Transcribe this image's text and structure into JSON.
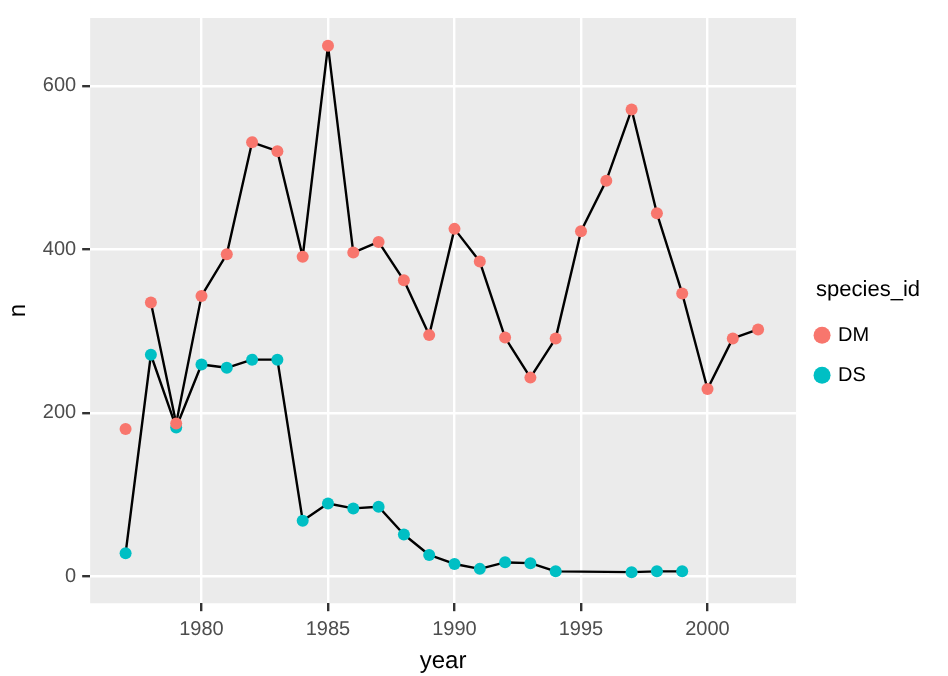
{
  "chart_data": {
    "type": "scatter",
    "xlabel": "year",
    "ylabel": "n",
    "legend_title": "species_id",
    "legend": "right",
    "grid": true,
    "marker": "circle",
    "xlim": [
      1975.6,
      2003.5
    ],
    "xticks": [
      1980,
      1985,
      1990,
      1995,
      2000
    ],
    "ylim": [
      -33,
      683
    ],
    "yticks": [
      0,
      200,
      400,
      600
    ],
    "series": [
      {
        "name": "DM",
        "color": "#f8766d",
        "x": [
          1977,
          1978,
          1979,
          1980,
          1981,
          1982,
          1983,
          1984,
          1985,
          1986,
          1987,
          1988,
          1989,
          1990,
          1991,
          1992,
          1993,
          1994,
          1995,
          1996,
          1997,
          1998,
          1999,
          2000,
          2001,
          2002
        ],
        "values": [
          180,
          335,
          187,
          343,
          394,
          531,
          520,
          391,
          649,
          396,
          409,
          362,
          295,
          425,
          385,
          292,
          243,
          291,
          422,
          484,
          571,
          444,
          346,
          229,
          291,
          302
        ]
      },
      {
        "name": "DS",
        "color": "#00bfc4",
        "x": [
          1977,
          1978,
          1979,
          1980,
          1981,
          1982,
          1983,
          1984,
          1985,
          1986,
          1987,
          1988,
          1989,
          1990,
          1991,
          1992,
          1993,
          1994,
          1997,
          1998,
          1999
        ],
        "values": [
          28,
          271,
          182,
          259,
          255,
          265,
          265,
          68,
          89,
          83,
          85,
          51,
          26,
          15,
          9,
          17,
          16,
          6,
          5,
          6,
          6
        ]
      },
      {
        "type": "line",
        "marker": "none",
        "color": "#000000",
        "x": [
          1978,
          1979,
          1980,
          1981,
          1982,
          1983,
          1984,
          1985,
          1986,
          1987,
          1988,
          1989,
          1990,
          1991,
          1992,
          1993,
          1994,
          1995,
          1996,
          1997,
          1998,
          1999,
          2000,
          2001,
          2002
        ],
        "values": [
          335,
          187,
          343,
          394,
          531,
          520,
          391,
          649,
          396,
          409,
          362,
          295,
          425,
          385,
          292,
          243,
          291,
          422,
          484,
          571,
          444,
          346,
          229,
          291,
          302
        ]
      },
      {
        "type": "line",
        "marker": "none",
        "color": "#000000",
        "x": [
          1977,
          1978,
          1979,
          1980,
          1981,
          1982,
          1983,
          1984,
          1985,
          1986,
          1987,
          1988,
          1989,
          1990,
          1991,
          1992,
          1993,
          1994,
          1997,
          1998,
          1999
        ],
        "values": [
          28,
          271,
          182,
          259,
          255,
          265,
          265,
          68,
          89,
          83,
          85,
          51,
          26,
          15,
          9,
          17,
          16,
          6,
          5,
          6,
          6
        ]
      }
    ]
  }
}
